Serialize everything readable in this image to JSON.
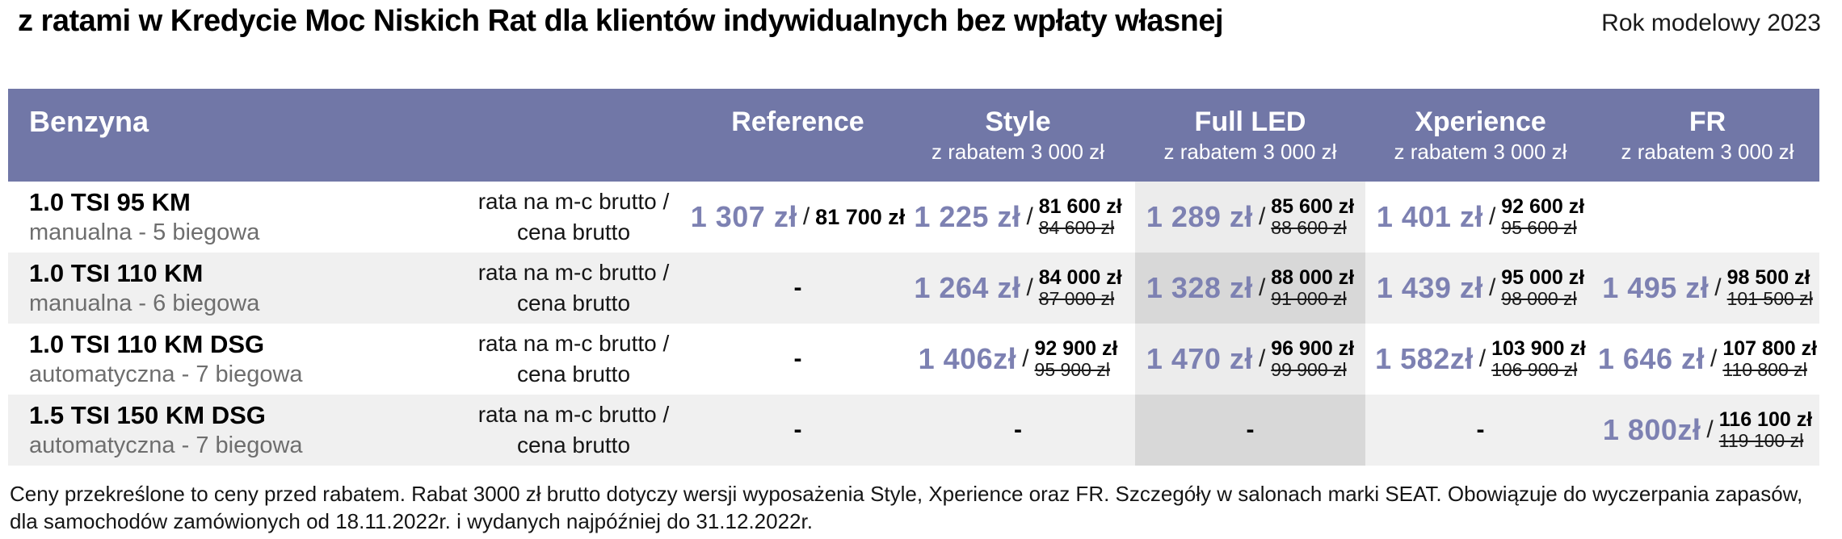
{
  "title": "z ratami w Kredycie Moc Niskich Rat dla klientów indywidualnych bez wpłaty własnej",
  "model_year": "Rok modelowy 2023",
  "colors": {
    "header_bg": "#7177a7",
    "accent": "#7d81b2",
    "row_alt": "#f0f0f0",
    "highlight": "#ececec",
    "highlight_dark": "#d8d8d8"
  },
  "table": {
    "slash": "/",
    "header": {
      "fuel": "Benzyna",
      "columns": [
        {
          "name": "Reference",
          "subtitle": ""
        },
        {
          "name": "Style",
          "subtitle": "z rabatem 3 000 zł"
        },
        {
          "name": "Full LED",
          "subtitle": "z rabatem 3 000 zł"
        },
        {
          "name": "Xperience",
          "subtitle": "z rabatem 3 000 zł"
        },
        {
          "name": "FR",
          "subtitle": "z rabatem 3 000 zł"
        }
      ]
    },
    "rate_label": {
      "line1": "rata na m-c brutto /",
      "line2": "cena brutto"
    },
    "rows": [
      {
        "engine": "1.0 TSI 95 KM",
        "gearbox": "manualna - 5 biegowa",
        "reference": {
          "rate": "1 307 zł",
          "price": "81 700 zł"
        },
        "style": {
          "rate": "1 225 zł",
          "price": "81 600 zł",
          "old": "84 600 zł"
        },
        "full_led": {
          "rate": "1 289 zł",
          "price": "85 600 zł",
          "old": "88 600 zł"
        },
        "xperience": {
          "rate": "1 401 zł",
          "price": "92 600 zł",
          "old": "95 600 zł"
        },
        "fr": {}
      },
      {
        "engine": "1.0 TSI 110 KM",
        "gearbox": "manualna - 6 biegowa",
        "reference": {
          "dash": "-"
        },
        "style": {
          "rate": "1 264 zł",
          "price": "84 000 zł",
          "old": "87 000 zł"
        },
        "full_led": {
          "rate": "1 328 zł",
          "price": "88 000 zł",
          "old": "91 000 zł"
        },
        "xperience": {
          "rate": "1 439 zł",
          "price": "95 000 zł",
          "old": "98 000 zł"
        },
        "fr": {
          "rate": "1 495 zł",
          "price": "98 500 zł",
          "old": "101 500 zł"
        }
      },
      {
        "engine": "1.0 TSI 110 KM DSG",
        "gearbox": "automatyczna - 7 biegowa",
        "reference": {
          "dash": "-"
        },
        "style": {
          "rate": "1 406zł",
          "price": "92 900 zł",
          "old": "95 900 zł"
        },
        "full_led": {
          "rate": "1 470 zł",
          "price": "96 900 zł",
          "old": "99 900 zł"
        },
        "xperience": {
          "rate": "1 582zł",
          "price": "103 900 zł",
          "old": "106 900 zł"
        },
        "fr": {
          "rate": "1 646 zł",
          "price": "107 800 zł",
          "old": "110 800 zł"
        }
      },
      {
        "engine": "1.5 TSI 150 KM DSG",
        "gearbox": "automatyczna - 7 biegowa",
        "reference": {
          "dash": "-"
        },
        "style": {
          "dash": "-"
        },
        "full_led": {
          "dash": "-"
        },
        "xperience": {
          "dash": "-"
        },
        "fr": {
          "rate": "1 800zł",
          "price": "116 100 zł",
          "old": "119 100 zł"
        }
      }
    ]
  },
  "footnote": "Ceny przekreślone to ceny przed rabatem. Rabat 3000 zł brutto dotyczy wersji wyposażenia Style, Xperience oraz FR. Szczegóły w salonach marki SEAT. Obowiązuje do wyczerpania zapasów, dla samochodów zamówionych od 18.11.2022r. i wydanych najpóźniej do 31.12.2022r."
}
